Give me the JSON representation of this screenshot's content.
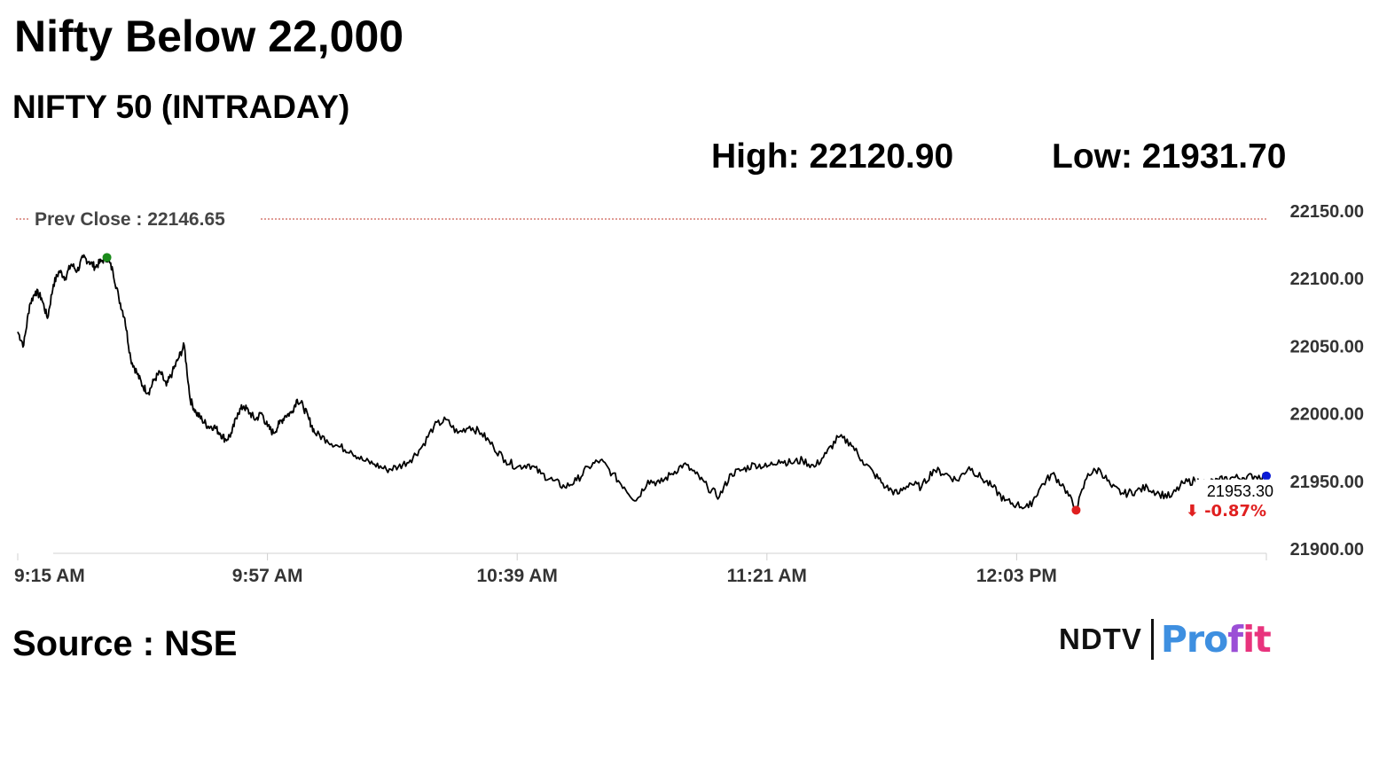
{
  "headline": "Nifty Below 22,000",
  "subtitle": "NIFTY 50 (INTRADAY)",
  "stats": {
    "high": "High: 22120.90",
    "low": "Low: 21931.70"
  },
  "source": "Source : NSE",
  "logo": {
    "left_text": "NDTV",
    "right_text": "Profit"
  },
  "colors": {
    "line": "#000000",
    "prev_close": "#c0392b",
    "high_marker": "#1a8a1a",
    "low_marker": "#e02020",
    "last_marker": "#0a1ad6",
    "change_negative": "#e02020",
    "axis": "#d0d0d0"
  },
  "chart_data": {
    "type": "line",
    "title": "NIFTY 50 (INTRADAY)",
    "xlabel": "",
    "ylabel": "",
    "x_ticks": [
      "9:15 AM",
      "9:57 AM",
      "10:39 AM",
      "11:21 AM",
      "12:03 PM"
    ],
    "y_ticks": [
      "22150.00",
      "22100.00",
      "22050.00",
      "22000.00",
      "21950.00",
      "21900.00"
    ],
    "ylim": [
      21900,
      22150
    ],
    "x_range_minutes": [
      0,
      210
    ],
    "grid": false,
    "legend": "none",
    "prev_close": {
      "label": "Prev Close : 22146.65",
      "value": 22146.65
    },
    "last": {
      "value": "21953.30",
      "change": "⬇ -0.87%"
    },
    "high_point": {
      "x": 15,
      "y": 22115
    },
    "low_point": {
      "x": 178,
      "y": 21928
    },
    "series": [
      {
        "x": [
          0,
          1,
          2,
          3,
          4,
          5,
          6,
          7,
          8,
          9,
          10,
          11,
          12,
          13,
          14,
          15,
          16,
          17,
          18,
          19,
          20,
          21,
          22,
          23,
          24,
          25,
          26,
          27,
          28,
          29,
          30,
          31,
          32,
          33,
          34,
          35,
          36,
          37,
          38,
          39,
          40,
          41,
          42,
          43,
          44,
          45,
          46,
          47,
          48,
          49,
          50,
          52,
          54,
          56,
          58,
          60,
          62,
          64,
          66,
          68,
          70,
          72,
          74,
          76,
          78,
          80,
          82,
          84,
          86,
          88,
          90,
          92,
          94,
          96,
          98,
          100,
          102,
          104,
          106,
          108,
          110,
          112,
          114,
          116,
          118,
          120,
          122,
          124,
          126,
          128,
          130,
          132,
          134,
          136,
          138,
          140,
          142,
          144,
          146,
          148,
          150,
          152,
          154,
          156,
          158,
          160,
          162,
          164,
          166,
          168,
          170,
          172,
          174,
          176,
          178,
          180,
          182,
          184,
          186,
          188,
          190,
          192,
          194,
          196,
          198,
          200,
          202,
          204,
          206,
          208,
          210
        ],
        "values": [
          22060,
          22050,
          22080,
          22090,
          22085,
          22070,
          22095,
          22105,
          22100,
          22110,
          22105,
          22115,
          22112,
          22108,
          22112,
          22115,
          22105,
          22085,
          22070,
          22040,
          22030,
          22020,
          22015,
          22025,
          22030,
          22020,
          22030,
          22040,
          22050,
          22010,
          22000,
          21995,
          21990,
          21990,
          21985,
          21980,
          21985,
          22000,
          22005,
          22000,
          21995,
          22000,
          21990,
          21985,
          21992,
          21998,
          22000,
          22010,
          22005,
          21995,
          21985,
          21980,
          21975,
          21972,
          21965,
          21962,
          21958,
          21960,
          21965,
          21975,
          21990,
          21995,
          21985,
          21990,
          21985,
          21975,
          21965,
          21960,
          21962,
          21955,
          21950,
          21945,
          21950,
          21960,
          21965,
          21955,
          21945,
          21935,
          21950,
          21948,
          21955,
          21962,
          21955,
          21945,
          21938,
          21955,
          21958,
          21962,
          21960,
          21965,
          21963,
          21965,
          21960,
          21970,
          21982,
          21978,
          21965,
          21955,
          21945,
          21940,
          21948,
          21945,
          21958,
          21955,
          21950,
          21960,
          21952,
          21945,
          21935,
          21932,
          21930,
          21945,
          21955,
          21945,
          21928,
          21955,
          21958,
          21945,
          21940,
          21942,
          21945,
          21940,
          21938,
          21948,
          21950,
          21948,
          21950,
          21952,
          21952,
          21953,
          21953.3
        ]
      }
    ]
  }
}
